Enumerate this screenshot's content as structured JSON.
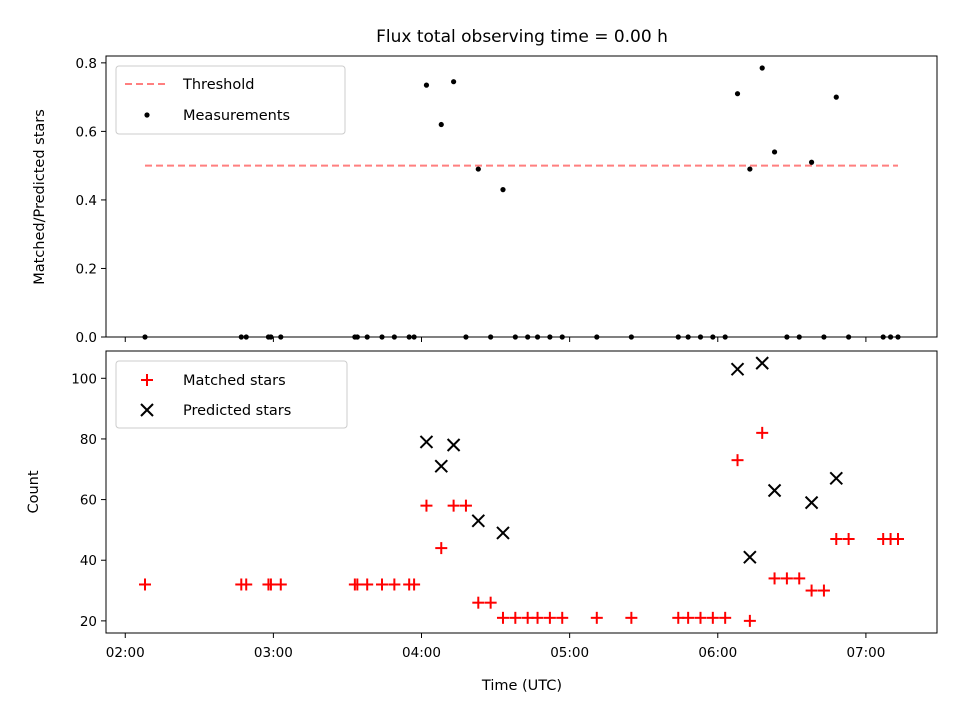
{
  "chart_data": [
    {
      "type": "scatter",
      "title": "Flux total observing time = 0.00 h",
      "xlabel": "",
      "ylabel": "Matched/Predicted stars",
      "ylim": [
        0,
        0.82
      ],
      "yticks": [
        "0.0",
        "0.2",
        "0.4",
        "0.6",
        "0.8"
      ],
      "xlim_hours": [
        1.87,
        7.48
      ],
      "grid": false,
      "legend_position": "upper-left",
      "threshold": {
        "name": "Threshold",
        "value": 0.5,
        "x_start": "02:08",
        "x_end": "07:13",
        "color": "#ff7f7f",
        "style": "dashed"
      },
      "series": [
        {
          "name": "Measurements",
          "marker": "dot",
          "color": "#000000",
          "x": [
            "02:08",
            "02:47",
            "02:49",
            "02:58",
            "02:59",
            "03:03",
            "03:33",
            "03:34",
            "03:38",
            "03:44",
            "03:49",
            "03:55",
            "03:57",
            "04:02",
            "04:08",
            "04:13",
            "04:18",
            "04:23",
            "04:28",
            "04:33",
            "04:38",
            "04:43",
            "04:47",
            "04:52",
            "04:57",
            "05:11",
            "05:25",
            "05:44",
            "05:48",
            "05:53",
            "05:58",
            "06:03",
            "06:08",
            "06:13",
            "06:18",
            "06:23",
            "06:28",
            "06:33",
            "06:38",
            "06:43",
            "06:48",
            "06:53",
            "07:07",
            "07:10",
            "07:13"
          ],
          "y": [
            0.0,
            0.0,
            0.0,
            0.0,
            0.0,
            0.0,
            0.0,
            0.0,
            0.0,
            0.0,
            0.0,
            0.0,
            0.0,
            0.735,
            0.62,
            0.745,
            0.0,
            0.49,
            0.0,
            0.43,
            0.0,
            0.0,
            0.0,
            0.0,
            0.0,
            0.0,
            0.0,
            0.0,
            0.0,
            0.0,
            0.0,
            0.0,
            0.71,
            0.49,
            0.785,
            0.54,
            0.0,
            0.0,
            0.51,
            0.0,
            0.7,
            0.0,
            0.0,
            0.0,
            0.0
          ]
        }
      ]
    },
    {
      "type": "scatter",
      "title": "",
      "xlabel": "Time (UTC)",
      "ylabel": "Count",
      "ylim": [
        16,
        109
      ],
      "yticks": [
        "20",
        "40",
        "60",
        "80",
        "100"
      ],
      "xlim_hours": [
        1.87,
        7.48
      ],
      "xticks": [
        "02:00",
        "03:00",
        "04:00",
        "05:00",
        "06:00",
        "07:00"
      ],
      "grid": false,
      "legend_position": "upper-left",
      "series": [
        {
          "name": "Matched stars",
          "marker": "plus",
          "color": "#ff0000",
          "x": [
            "02:08",
            "02:47",
            "02:49",
            "02:58",
            "02:59",
            "03:03",
            "03:33",
            "03:34",
            "03:38",
            "03:44",
            "03:49",
            "03:55",
            "03:57",
            "04:02",
            "04:08",
            "04:13",
            "04:18",
            "04:23",
            "04:28",
            "04:33",
            "04:38",
            "04:43",
            "04:47",
            "04:52",
            "04:57",
            "05:11",
            "05:25",
            "05:44",
            "05:48",
            "05:53",
            "05:58",
            "06:03",
            "06:08",
            "06:13",
            "06:18",
            "06:23",
            "06:28",
            "06:33",
            "06:38",
            "06:43",
            "06:48",
            "06:53",
            "07:07",
            "07:10",
            "07:13"
          ],
          "y": [
            32,
            32,
            32,
            32,
            32,
            32,
            32,
            32,
            32,
            32,
            32,
            32,
            32,
            58,
            44,
            58,
            58,
            26,
            26,
            21,
            21,
            21,
            21,
            21,
            21,
            21,
            21,
            21,
            21,
            21,
            21,
            21,
            73,
            20,
            82,
            34,
            34,
            34,
            30,
            30,
            47,
            47,
            47,
            47,
            47
          ]
        },
        {
          "name": "Predicted stars",
          "marker": "x",
          "color": "#000000",
          "x": [
            "04:02",
            "04:08",
            "04:13",
            "04:23",
            "04:33",
            "06:08",
            "06:13",
            "06:18",
            "06:23",
            "06:38",
            "06:48"
          ],
          "y": [
            79,
            71,
            78,
            53,
            49,
            103,
            41,
            105,
            63,
            59,
            67
          ]
        }
      ]
    }
  ]
}
